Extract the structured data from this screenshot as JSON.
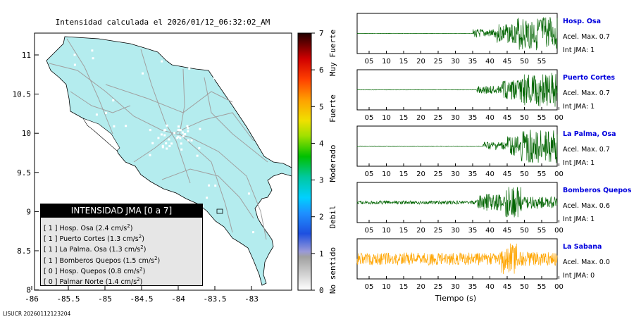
{
  "map": {
    "title": "Intensidad calculada el 2026/01/12_06:32:02_AM",
    "x_ticks": [
      "-86",
      "-85.5",
      "-85",
      "-84.5",
      "-84",
      "-83.5",
      "-83"
    ],
    "y_ticks": [
      "11",
      "10.5",
      "10",
      "9.5",
      "9",
      "8.5",
      "8"
    ],
    "land_color": "#b4ecee",
    "station_color": "#ffffff"
  },
  "colorbar": {
    "tick_labels": [
      "0",
      "1",
      "2",
      "3",
      "4",
      "5",
      "6",
      "7"
    ],
    "category_labels": [
      "No sentido",
      "Debil",
      "Moderado",
      "Fuerte",
      "Muy Fuerte"
    ]
  },
  "legend": {
    "header": "INTENSIDAD JMA [0 a 7]",
    "items": [
      {
        "text": "[ 1 ]  Hosp. Osa (2.4 cm/s",
        "sup": "2",
        "close": ")"
      },
      {
        "text": "[ 1 ]  Puerto Cortes (1.3 cm/s",
        "sup": "2",
        "close": ")"
      },
      {
        "text": "[ 1 ]  La Palma. Osa (1.3 cm/s",
        "sup": "2",
        "close": ")"
      },
      {
        "text": "[ 1 ]  Bomberos Quepos (1.5 cm/s",
        "sup": "2",
        "close": ")"
      },
      {
        "text": "[ 0 ]  Hosp. Quepos (0.8 cm/s",
        "sup": "2",
        "close": ")"
      },
      {
        "text": "[ 0 ]  Palmar Norte (1.4 cm/s",
        "sup": "2",
        "close": ")"
      }
    ]
  },
  "footer_id": "LISUCR 20260112123204",
  "traces": [
    {
      "station": "Hosp. Osa",
      "accel": "Acel. Max. 0.7",
      "intensity": "Int JMA: 1",
      "color": "#006400",
      "onset": 0.58,
      "ticks": [
        "05",
        "10",
        "15",
        "20",
        "25",
        "30",
        "35",
        "40",
        "45",
        "50",
        "55"
      ]
    },
    {
      "station": "Puerto Cortes",
      "accel": "Acel. Max. 0.7",
      "intensity": "Int JMA: 1",
      "color": "#006400",
      "onset": 0.6,
      "ticks": [
        "05",
        "10",
        "15",
        "20",
        "25",
        "30",
        "35",
        "40",
        "45",
        "50",
        "55",
        "00"
      ]
    },
    {
      "station": "La Palma, Osa",
      "accel": "Acel. Max. 0.7",
      "intensity": "Int JMA: 1",
      "color": "#006400",
      "onset": 0.63,
      "ticks": [
        "05",
        "10",
        "15",
        "20",
        "25",
        "30",
        "35",
        "40",
        "45",
        "50",
        "55",
        "00"
      ]
    },
    {
      "station": "Bomberos Quepos",
      "accel": "Acel. Max. 0.6",
      "intensity": "Int JMA: 1",
      "color": "#006400",
      "onset": 0.0,
      "ticks": [
        "05",
        "10",
        "15",
        "20",
        "25",
        "30",
        "35",
        "40",
        "45",
        "50",
        "55",
        "00"
      ]
    },
    {
      "station": "La Sabana",
      "accel": "Acel. Max. 0.0",
      "intensity": "Int JMA: 0",
      "color": "#ffa500",
      "onset": 0.0,
      "ticks": [
        "05",
        "10",
        "15",
        "20",
        "25",
        "30",
        "35",
        "40",
        "45",
        "50",
        "55",
        "00"
      ]
    }
  ],
  "traces_xlabel": "Tiempo (s)"
}
